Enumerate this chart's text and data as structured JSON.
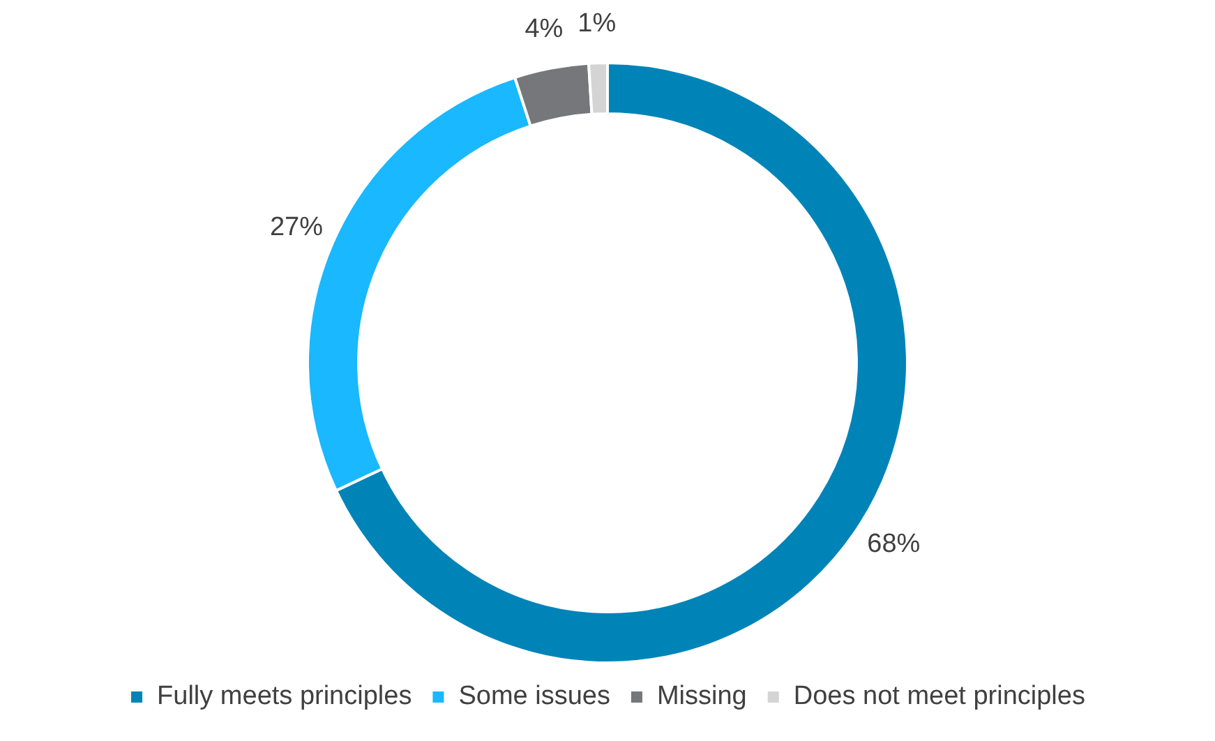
{
  "chart_data": {
    "type": "donut",
    "categories": [
      "Fully meets principles",
      "Some issues",
      "Missing",
      "Does not meet principles"
    ],
    "values": [
      68,
      27,
      4,
      1
    ],
    "colors": [
      "#0084b8",
      "#19b8ff",
      "#75777a",
      "#d4d4d4"
    ],
    "value_labels": [
      "68%",
      "27%",
      "4%",
      "1%"
    ],
    "legend": "bottom"
  }
}
